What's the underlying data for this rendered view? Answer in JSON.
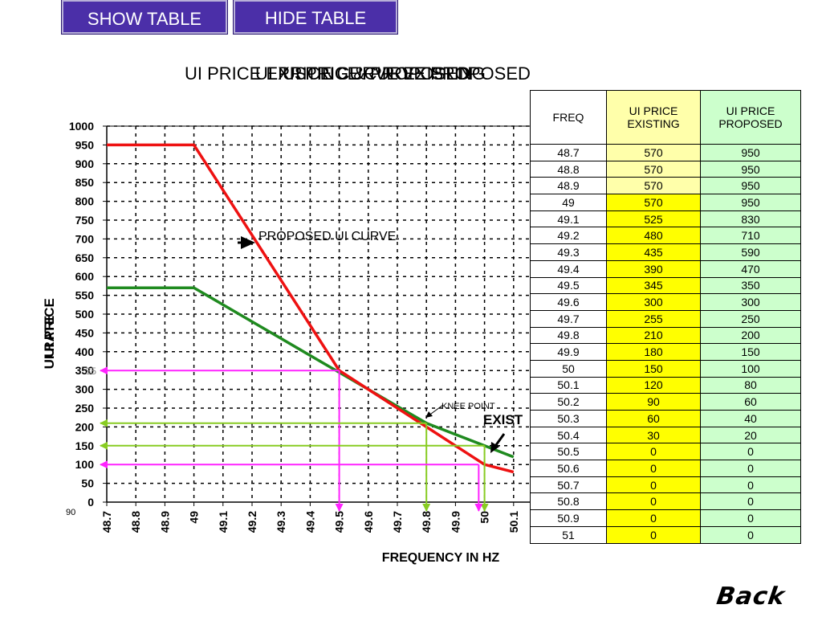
{
  "buttons": {
    "show": "SHOW TABLE",
    "hide": "HIDE TABLE"
  },
  "titles": [
    "UI PRICE EXISTING & PROPOSED",
    "UI PRICE CURVE EXISTING",
    "UI PRICE CURVE PROPOSED"
  ],
  "back_label": "Back",
  "colors": {
    "existing": "#1f8a1f",
    "proposed": "#ee1111",
    "magenta": "#ff22ff",
    "yellowgreen": "#88cc22",
    "button_bg": "#4b2fa8"
  },
  "chart_data": {
    "type": "line",
    "x": [
      48.7,
      48.8,
      48.9,
      49,
      49.1,
      49.2,
      49.3,
      49.4,
      49.5,
      49.6,
      49.7,
      49.8,
      49.9,
      50,
      50.1
    ],
    "x_tick_labels": [
      "48.7",
      "48.8",
      "48.9",
      "49",
      "49.1",
      "49.2",
      "49.3",
      "49.4",
      "49.5",
      "49.6",
      "49.7",
      "49.8",
      "49.9",
      "50",
      "50.1"
    ],
    "y_tick_labels": [
      "0",
      "50",
      "100",
      "150",
      "200",
      "250",
      "300",
      "350",
      "400",
      "450",
      "500",
      "550",
      "600",
      "650",
      "700",
      "750",
      "800",
      "850",
      "900",
      "950",
      "1000"
    ],
    "ylim": [
      0,
      1000
    ],
    "xlabel": "FREQUENCY IN HZ",
    "ylabel": "UI PRICE",
    "ylabel_overlap": "UI RATE",
    "grid": true,
    "series": [
      {
        "key": "existing",
        "values": [
          570,
          570,
          570,
          570,
          525,
          480,
          435,
          390,
          345,
          300,
          255,
          210,
          180,
          150,
          120
        ]
      },
      {
        "key": "proposed",
        "values": [
          950,
          950,
          950,
          950,
          830,
          710,
          590,
          470,
          350,
          300,
          250,
          200,
          150,
          100,
          80
        ]
      }
    ],
    "annotations": {
      "proposed_label": "PROPOSED UI CURVE",
      "knee_label": "KNEE POINT",
      "existing_label": "EXIST",
      "stray_label_1": "90",
      "stray_label_2": "35"
    },
    "guides": [
      {
        "color": "magenta",
        "x": 49.5,
        "y": 350
      },
      {
        "color": "yellowgreen",
        "x": 49.8,
        "y": 210
      },
      {
        "color": "yellowgreen",
        "x": 50,
        "y": 150
      },
      {
        "color": "magenta",
        "x": 49.98,
        "y": 100
      }
    ]
  },
  "table": {
    "headers": {
      "freq": "FREQ",
      "existing": "UI PRICE EXISTING",
      "proposed": "UI PRICE PROPOSED"
    },
    "rows": [
      {
        "freq": "48.7",
        "existing": "570",
        "proposed": "950"
      },
      {
        "freq": "48.8",
        "existing": "570",
        "proposed": "950"
      },
      {
        "freq": "48.9",
        "existing": "570",
        "proposed": "950"
      },
      {
        "freq": "49",
        "existing": "570",
        "proposed": "950"
      },
      {
        "freq": "49.1",
        "existing": "525",
        "proposed": "830"
      },
      {
        "freq": "49.2",
        "existing": "480",
        "proposed": "710"
      },
      {
        "freq": "49.3",
        "existing": "435",
        "proposed": "590"
      },
      {
        "freq": "49.4",
        "existing": "390",
        "proposed": "470"
      },
      {
        "freq": "49.5",
        "existing": "345",
        "proposed": "350"
      },
      {
        "freq": "49.6",
        "existing": "300",
        "proposed": "300"
      },
      {
        "freq": "49.7",
        "existing": "255",
        "proposed": "250"
      },
      {
        "freq": "49.8",
        "existing": "210",
        "proposed": "200"
      },
      {
        "freq": "49.9",
        "existing": "180",
        "proposed": "150"
      },
      {
        "freq": "50",
        "existing": "150",
        "proposed": "100"
      },
      {
        "freq": "50.1",
        "existing": "120",
        "proposed": "80"
      },
      {
        "freq": "50.2",
        "existing": "90",
        "proposed": "60"
      },
      {
        "freq": "50.3",
        "existing": "60",
        "proposed": "40"
      },
      {
        "freq": "50.4",
        "existing": "30",
        "proposed": "20"
      },
      {
        "freq": "50.5",
        "existing": "0",
        "proposed": "0"
      },
      {
        "freq": "50.6",
        "existing": "0",
        "proposed": "0"
      },
      {
        "freq": "50.7",
        "existing": "0",
        "proposed": "0"
      },
      {
        "freq": "50.8",
        "existing": "0",
        "proposed": "0"
      },
      {
        "freq": "50.9",
        "existing": "0",
        "proposed": "0"
      },
      {
        "freq": "51",
        "existing": "0",
        "proposed": "0"
      }
    ]
  }
}
